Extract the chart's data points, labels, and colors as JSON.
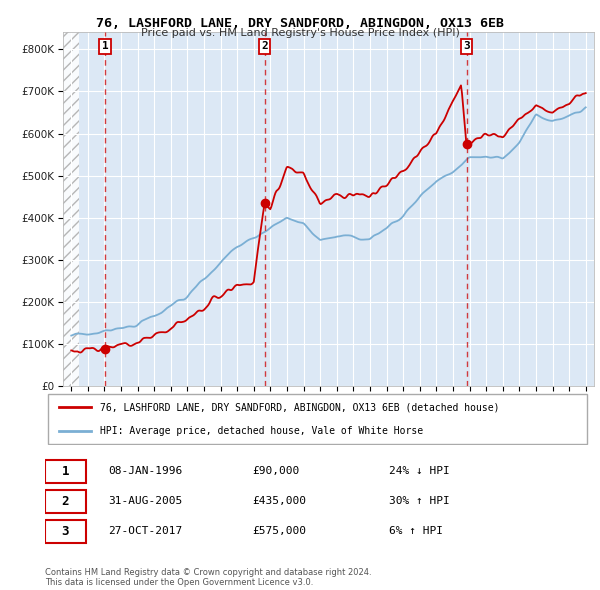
{
  "title_line1": "76, LASHFORD LANE, DRY SANDFORD, ABINGDON, OX13 6EB",
  "title_line2": "Price paid vs. HM Land Registry's House Price Index (HPI)",
  "hpi_color": "#7bafd4",
  "price_color": "#cc0000",
  "background_chart": "#dce8f5",
  "grid_color": "#ffffff",
  "purchases": [
    {
      "date_x": 1996.03,
      "price": 90000,
      "label": "1"
    },
    {
      "date_x": 2005.66,
      "price": 435000,
      "label": "2"
    },
    {
      "date_x": 2017.82,
      "price": 575000,
      "label": "3"
    }
  ],
  "legend_entries": [
    "76, LASHFORD LANE, DRY SANDFORD, ABINGDON, OX13 6EB (detached house)",
    "HPI: Average price, detached house, Vale of White Horse"
  ],
  "table_rows": [
    [
      "1",
      "08-JAN-1996",
      "£90,000",
      "24% ↓ HPI"
    ],
    [
      "2",
      "31-AUG-2005",
      "£435,000",
      "30% ↑ HPI"
    ],
    [
      "3",
      "27-OCT-2017",
      "£575,000",
      "6% ↑ HPI"
    ]
  ],
  "footnote": "Contains HM Land Registry data © Crown copyright and database right 2024.\nThis data is licensed under the Open Government Licence v3.0.",
  "xlim": [
    1993.5,
    2025.5
  ],
  "ylim": [
    0,
    840000
  ],
  "yticks": [
    0,
    100000,
    200000,
    300000,
    400000,
    500000,
    600000,
    700000,
    800000
  ],
  "ytick_labels": [
    "£0",
    "£100K",
    "£200K",
    "£300K",
    "£400K",
    "£500K",
    "£600K",
    "£700K",
    "£800K"
  ],
  "xticks": [
    1994,
    1995,
    1996,
    1997,
    1998,
    1999,
    2000,
    2001,
    2002,
    2003,
    2004,
    2005,
    2006,
    2007,
    2008,
    2009,
    2010,
    2011,
    2012,
    2013,
    2014,
    2015,
    2016,
    2017,
    2018,
    2019,
    2020,
    2021,
    2022,
    2023,
    2024,
    2025
  ],
  "hpi_anchors": [
    [
      1994,
      120000
    ],
    [
      1995,
      125000
    ],
    [
      1996,
      130000
    ],
    [
      1997,
      138000
    ],
    [
      1998,
      148000
    ],
    [
      1999,
      165000
    ],
    [
      2000,
      188000
    ],
    [
      2001,
      215000
    ],
    [
      2002,
      255000
    ],
    [
      2003,
      295000
    ],
    [
      2004,
      330000
    ],
    [
      2005,
      355000
    ],
    [
      2006,
      375000
    ],
    [
      2007,
      400000
    ],
    [
      2008,
      385000
    ],
    [
      2009,
      345000
    ],
    [
      2010,
      360000
    ],
    [
      2011,
      355000
    ],
    [
      2012,
      355000
    ],
    [
      2013,
      375000
    ],
    [
      2014,
      405000
    ],
    [
      2015,
      450000
    ],
    [
      2016,
      490000
    ],
    [
      2017,
      510000
    ],
    [
      2018,
      540000
    ],
    [
      2019,
      545000
    ],
    [
      2020,
      540000
    ],
    [
      2021,
      580000
    ],
    [
      2022,
      640000
    ],
    [
      2023,
      630000
    ],
    [
      2024,
      640000
    ],
    [
      2025,
      660000
    ]
  ],
  "price_anchors": [
    [
      1994,
      85000
    ],
    [
      1995,
      88000
    ],
    [
      1996.03,
      90000
    ],
    [
      1996.5,
      92000
    ],
    [
      1997,
      95000
    ],
    [
      1998,
      105000
    ],
    [
      1999,
      120000
    ],
    [
      2000,
      138000
    ],
    [
      2001,
      158000
    ],
    [
      2002,
      185000
    ],
    [
      2003,
      215000
    ],
    [
      2004,
      242000
    ],
    [
      2005.0,
      250000
    ],
    [
      2005.66,
      435000
    ],
    [
      2006,
      420000
    ],
    [
      2007,
      520000
    ],
    [
      2008,
      510000
    ],
    [
      2009,
      430000
    ],
    [
      2010,
      460000
    ],
    [
      2011,
      450000
    ],
    [
      2012,
      455000
    ],
    [
      2013,
      480000
    ],
    [
      2014,
      510000
    ],
    [
      2015,
      555000
    ],
    [
      2016,
      600000
    ],
    [
      2017.0,
      680000
    ],
    [
      2017.5,
      710000
    ],
    [
      2017.82,
      575000
    ],
    [
      2018,
      580000
    ],
    [
      2019,
      600000
    ],
    [
      2020,
      590000
    ],
    [
      2021,
      630000
    ],
    [
      2022,
      670000
    ],
    [
      2023,
      650000
    ],
    [
      2024,
      670000
    ],
    [
      2025,
      700000
    ]
  ]
}
